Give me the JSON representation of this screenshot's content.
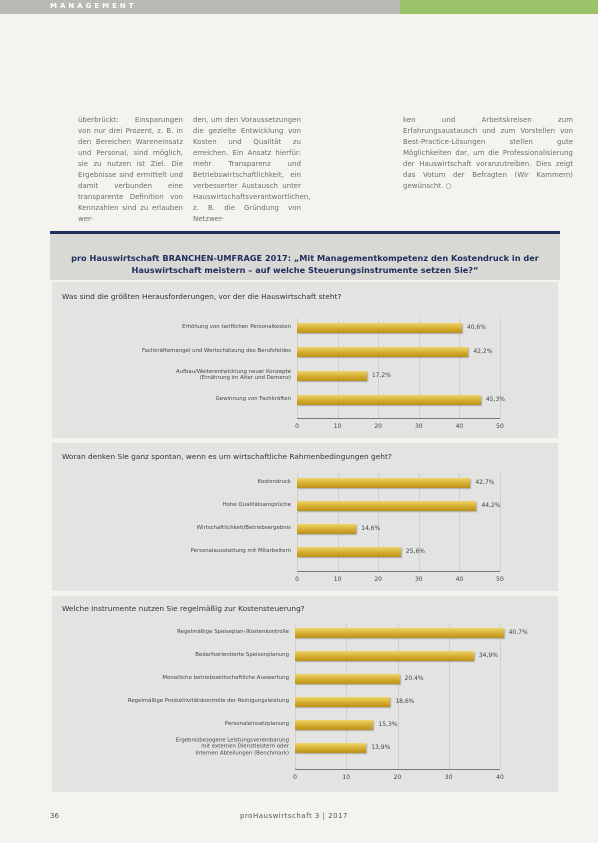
{
  "header": {
    "section": "MANAGEMENT"
  },
  "body": {
    "columns": [
      "überbrückt: Einsparungen von nur drei Prozent, z. B. in den Bereichen Wareneinsatz und Personal, sind möglich, sie zu nutzen ist Ziel. Die Ergebnisse sind ermittelt und damit verbunden eine transparente Definition von Kennzahlen sind zu erlauben wer-",
      "den, um den Voraussetzungen die gezielte Entwicklung von Kosten und Qualität zu erreichen. Ein Ansatz hierfür: mehr Transparenz und Betriebswirtschaftlichkeit, ein verbesserter Austausch unter Hauswirtschaftsverantwortlichen, z. B. die Gründung von Netzwer-",
      "ken und Arbeitskreisen zum Erfahrungsaustausch und zum Vorstellen von Best-Practice-Lösungen stellen gute Möglichkeiten dar, um die Professionalisierung der Hauswirtschaft voranzutreiben. Dies zeigt das Votum der Befragten (Wir Kammern) gewünscht. ○"
    ]
  },
  "survey_title": "pro Hauswirtschaft BRANCHEN-UMFRAGE 2017: „Mit Managementkompetenz den Kostendruck in der Hauswirtschaft meistern – auf welche Steuerungsinstrumente setzen Sie?“",
  "chart_data": [
    {
      "type": "bar",
      "orientation": "horizontal",
      "title": "Was sind die größten Herausforderungen, vor der die Hauswirtschaft steht?",
      "categories": [
        "Erhöhung von tariflichen Personalkosten",
        "Fachkräftemangel und Wertschätzung des Berufsfeldes",
        "Aufbau/Weiterentwicklung neuer Konzepte\n(Ernährung im Alter und Demenz)",
        "Gewinnung von Fachkräften"
      ],
      "values": [
        40.6,
        42.2,
        17.2,
        45.3
      ],
      "value_labels": [
        "40,6%",
        "42,2%",
        "17,2%",
        "45,3%"
      ],
      "color": "#d2a92a",
      "xlim": [
        0,
        50
      ],
      "xticks": [
        0,
        10,
        20,
        30,
        40,
        50
      ],
      "grid": true
    },
    {
      "type": "bar",
      "orientation": "horizontal",
      "title": "Woran denken Sie ganz spontan, wenn es um wirtschaftliche Rahmenbedingungen geht?",
      "categories": [
        "Kostendruck",
        "Hohe Qualitätsansprüche",
        "Wirtschaftlichkeit/Betriebsergebnis",
        "Personalausstattung mit Mitarbeitern"
      ],
      "values": [
        42.7,
        44.2,
        14.6,
        25.6
      ],
      "value_labels": [
        "42,7%",
        "44,2%",
        "14,6%",
        "25,6%"
      ],
      "color": "#d2a92a",
      "xlim": [
        0,
        50
      ],
      "xticks": [
        0,
        10,
        20,
        30,
        40,
        50
      ],
      "grid": true
    },
    {
      "type": "bar",
      "orientation": "horizontal",
      "title": "Welche Instrumente nutzen Sie regelmäßig zur Kostensteuerung?",
      "categories": [
        "Regelmäßige Speiseplan-/Kostenkontrolle",
        "Bedarfsorientierte Speisenplanung",
        "Monatliche betriebswirtschaftliche Auswertung",
        "Regelmäßige Produktivitätskontrolle der Reinigungsleistung",
        "Personaleinsatzplanung",
        "Ergebnisbezogene Leistungsvereinbarung\nmit externen Dienstleistern oder\nInternen Abteilungen (Benchmark)"
      ],
      "values": [
        40.7,
        34.9,
        20.4,
        18.6,
        15.3,
        13.9
      ],
      "value_labels": [
        "40,7%",
        "34,9%",
        "20,4%",
        "18,6%",
        "15,3%",
        "13,9%"
      ],
      "color": "#d2a92a",
      "xlim": [
        0,
        40
      ],
      "xticks": [
        0,
        10,
        20,
        30,
        40
      ],
      "grid": true
    }
  ],
  "footer": {
    "page": "36",
    "magazine": "proHauswirtschaft 3 | 2017"
  }
}
